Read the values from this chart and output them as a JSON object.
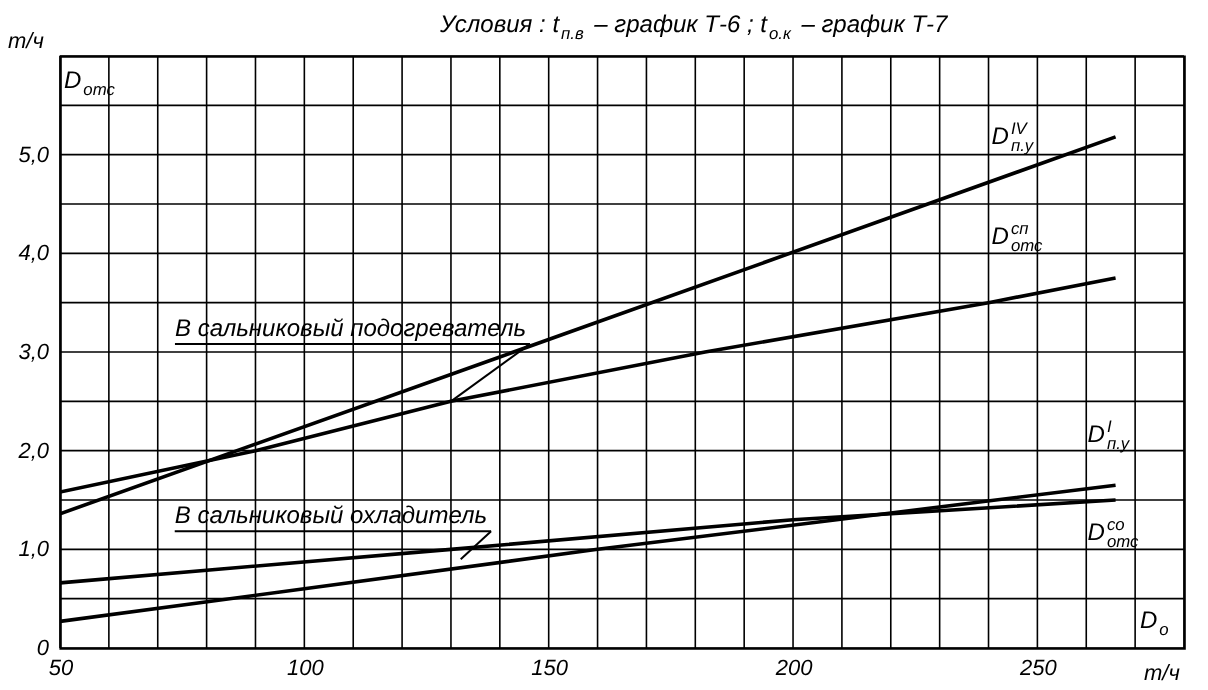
{
  "chart_data": {
    "type": "line",
    "title": "Условия : t$_{п.в}$ – график Т-6 ; t$_{о.к}$ – график Т-7",
    "xlabel": "т/ч",
    "ylabel": "т/ч",
    "annotations": [
      "D$_{отс}$",
      "D$_{о}$",
      {
        "text": "В сальниковый подогреватель",
        "x": 130,
        "y": 2.5
      },
      {
        "text": "В сальниковый охладитель",
        "x": 132,
        "y": 0.9
      }
    ],
    "xlim": [
      50,
      280
    ],
    "ylim": [
      0,
      6
    ],
    "xticks": [
      50,
      {
        "value": 60,
        "label": null
      },
      {
        "value": 70,
        "label": null
      },
      {
        "value": 80,
        "label": null
      },
      {
        "value": 90,
        "label": null
      },
      100,
      {
        "value": 110,
        "label": null
      },
      {
        "value": 120,
        "label": null
      },
      {
        "value": 130,
        "label": null
      },
      {
        "value": 140,
        "label": null
      },
      150,
      {
        "value": 160,
        "label": null
      },
      {
        "value": 170,
        "label": null
      },
      {
        "value": 180,
        "label": null
      },
      {
        "value": 190,
        "label": null
      },
      200,
      {
        "value": 210,
        "label": null
      },
      {
        "value": 220,
        "label": null
      },
      {
        "value": 230,
        "label": null
      },
      {
        "value": 240,
        "label": null
      },
      250,
      {
        "value": 260,
        "label": null
      },
      {
        "value": 270,
        "label": null
      },
      {
        "value": 280,
        "label": null
      }
    ],
    "yticks": [
      0,
      {
        "value": 0.5,
        "label": null
      },
      {
        "value": 1,
        "label": "1,0"
      },
      {
        "value": 1.5,
        "label": null
      },
      {
        "value": 2,
        "label": "2,0"
      },
      {
        "value": 2.5,
        "label": null
      },
      {
        "value": 3,
        "label": "3,0"
      },
      {
        "value": 3.5,
        "label": null
      },
      {
        "value": 4,
        "label": "4,0"
      },
      {
        "value": 4.5,
        "label": null
      },
      {
        "value": 5,
        "label": "5,0"
      },
      {
        "value": 5.5,
        "label": null
      },
      {
        "value": 6,
        "label": null
      }
    ],
    "grid": true,
    "series": [
      {
        "name": "D$^{IV}$$_{п.у}$",
        "color": "#000000",
        "x": [
          50,
          140,
          266
        ],
        "values": [
          1.36,
          2.95,
          5.18
        ]
      },
      {
        "name": "D$^{сп}$$_{отс}$",
        "color": "#000000",
        "x": [
          50,
          90,
          130,
          182,
          240,
          266
        ],
        "values": [
          1.58,
          2.0,
          2.5,
          3.0,
          3.5,
          3.75
        ]
      },
      {
        "name": "D$^{I}$$_{п.у}$",
        "color": "#000000",
        "x": [
          50,
          100,
          160,
          266
        ],
        "values": [
          0.27,
          0.6,
          1.0,
          1.65
        ]
      },
      {
        "name": "D$^{со}$$_{отс}$",
        "color": "#000000",
        "x": [
          50,
          130,
          200,
          266
        ],
        "values": [
          0.66,
          1.0,
          1.3,
          1.5
        ]
      }
    ]
  }
}
